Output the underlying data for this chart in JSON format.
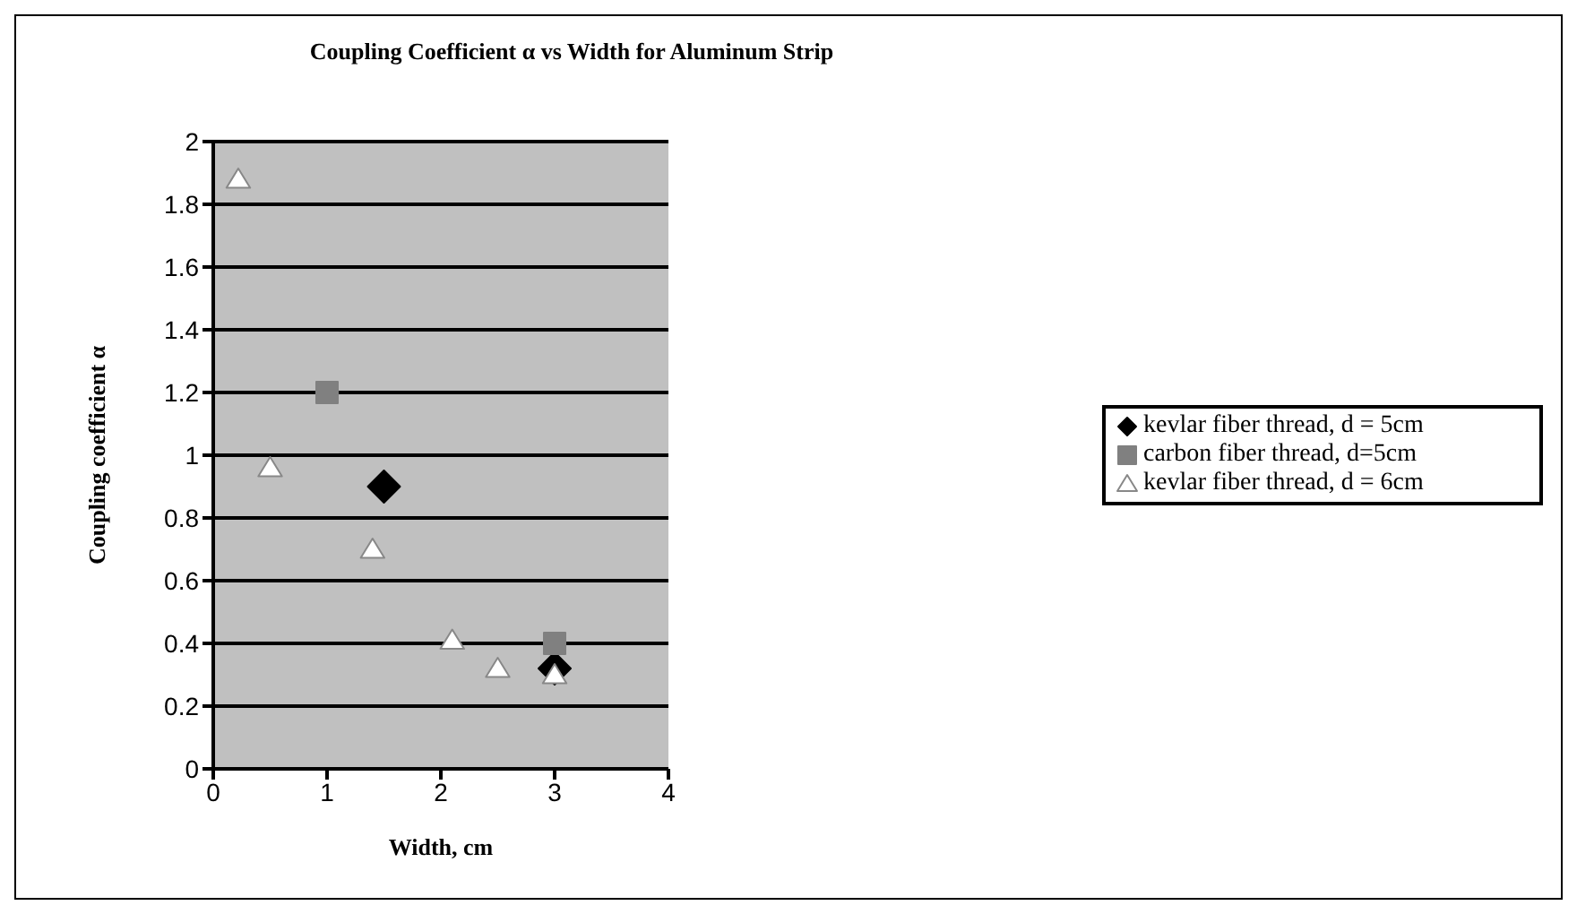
{
  "chart_data": {
    "type": "scatter",
    "title": "Coupling Coefficient α vs Width for Aluminum Strip",
    "xlabel": "Width, cm",
    "ylabel": "Coupling coefficient α",
    "series": [
      {
        "name": "kevlar fiber thread, d = 5cm",
        "color": "#000000",
        "marker": "diamond",
        "x": [
          1.5,
          3
        ],
        "values": [
          0.9,
          0.32
        ]
      },
      {
        "name": "carbon fiber thread, d=5cm",
        "color": "#808080",
        "marker": "square",
        "x": [
          1,
          3
        ],
        "values": [
          1.2,
          0.4
        ]
      },
      {
        "name": "kevlar fiber thread, d = 6cm",
        "color": "#ffffff",
        "marker": "triangle",
        "x": [
          0.22,
          0.5,
          1.4,
          2.1,
          2.5,
          3
        ],
        "values": [
          1.88,
          0.96,
          0.7,
          0.41,
          0.32,
          0.3
        ]
      }
    ],
    "xlim": [
      0,
      4
    ],
    "xticks": [
      0,
      1,
      2,
      3,
      4
    ],
    "ylim": [
      0,
      2
    ],
    "yticks": [
      0,
      0.2,
      0.4,
      0.6,
      0.8,
      1,
      1.2,
      1.4,
      1.6,
      1.8,
      2
    ],
    "grid": "y",
    "legend": "right"
  }
}
